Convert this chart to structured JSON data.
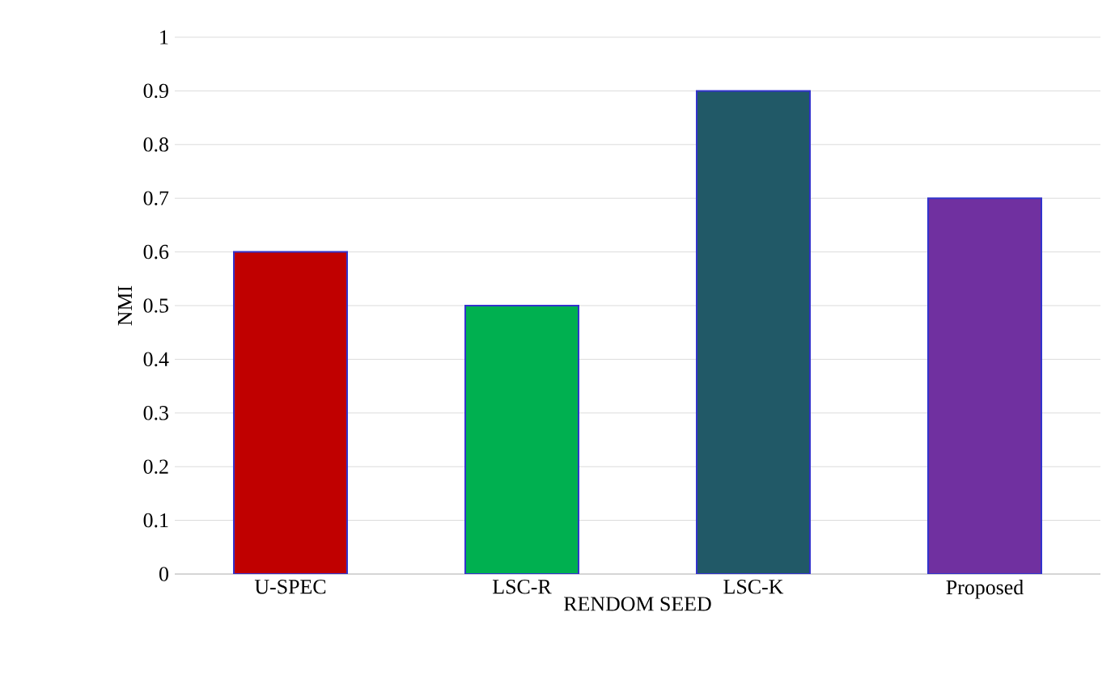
{
  "chart_data": {
    "type": "bar",
    "xlabel": "RENDOM SEED",
    "ylabel": "NMI",
    "categories": [
      "U-SPEC",
      "LSC-R",
      "LSC-K",
      "Proposed"
    ],
    "values": [
      0.6,
      0.5,
      0.9,
      0.7
    ],
    "colors": [
      "#c00000",
      "#00b050",
      "#215967",
      "#7030a0"
    ],
    "ylim": [
      0,
      1
    ],
    "yticks": [
      0,
      0.1,
      0.2,
      0.3,
      0.4,
      0.5,
      0.6,
      0.7,
      0.8,
      0.9,
      1
    ],
    "grid": "y"
  }
}
